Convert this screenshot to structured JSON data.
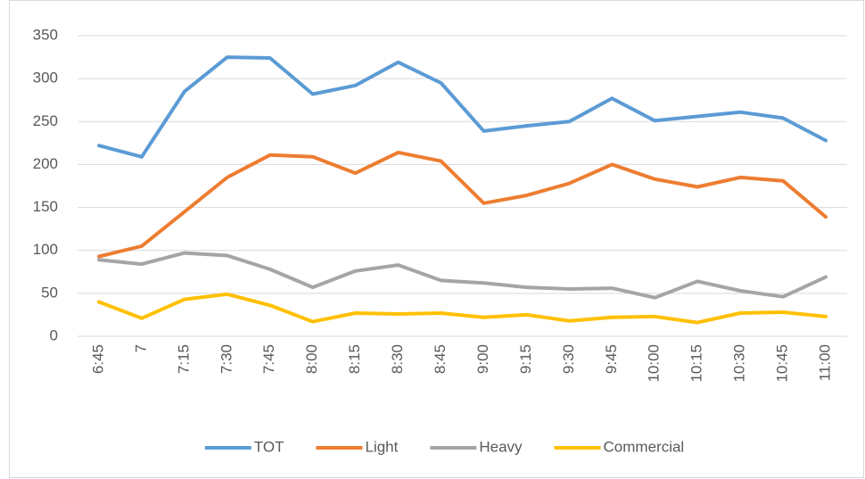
{
  "chart_data": {
    "type": "line",
    "categories": [
      "6:45",
      "7",
      "7:15",
      "7:30",
      "7:45",
      "8:00",
      "8:15",
      "8:30",
      "8:45",
      "9:00",
      "9:15",
      "9:30",
      "9:45",
      "10:00",
      "10:15",
      "10:30",
      "10:45",
      "11:00"
    ],
    "series": [
      {
        "name": "TOT",
        "color": "#5b9bd5",
        "values": [
          222,
          209,
          285,
          325,
          324,
          282,
          292,
          319,
          295,
          239,
          245,
          250,
          277,
          251,
          256,
          261,
          254,
          228
        ]
      },
      {
        "name": "Light",
        "color": "#ed7d31",
        "values": [
          93,
          105,
          145,
          185,
          211,
          209,
          190,
          214,
          204,
          155,
          164,
          178,
          200,
          183,
          174,
          185,
          181,
          139
        ]
      },
      {
        "name": "Heavy",
        "color": "#a5a5a5",
        "values": [
          89,
          84,
          97,
          94,
          78,
          57,
          76,
          83,
          65,
          62,
          57,
          55,
          56,
          45,
          64,
          53,
          46,
          69
        ]
      },
      {
        "name": "Commercial",
        "color": "#ffc000",
        "values": [
          40,
          21,
          43,
          49,
          36,
          17,
          27,
          26,
          27,
          22,
          25,
          18,
          22,
          23,
          16,
          27,
          28,
          23
        ]
      }
    ],
    "ylim": [
      0,
      350
    ],
    "yticks": [
      0,
      50,
      100,
      150,
      200,
      250,
      300,
      350
    ],
    "grid": true,
    "legend": "bottom"
  }
}
